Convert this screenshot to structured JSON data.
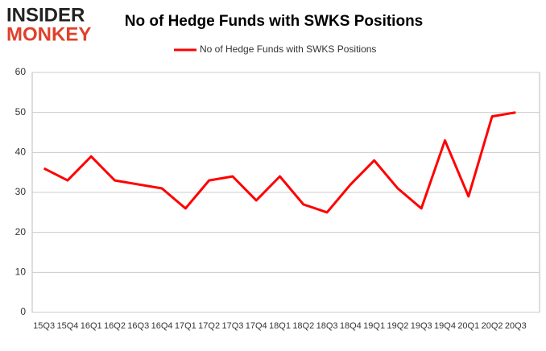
{
  "logo": {
    "line1": "INSIDER",
    "line2": "MONKEY"
  },
  "chart_data": {
    "type": "line",
    "title": "No of Hedge Funds with SWKS Positions",
    "categories": [
      "15Q3",
      "15Q4",
      "16Q1",
      "16Q2",
      "16Q3",
      "16Q4",
      "17Q1",
      "17Q2",
      "17Q3",
      "17Q4",
      "18Q1",
      "18Q2",
      "18Q3",
      "18Q4",
      "19Q1",
      "19Q2",
      "19Q3",
      "19Q4",
      "20Q1",
      "20Q2",
      "20Q3"
    ],
    "series": [
      {
        "name": "No of Hedge Funds with SWKS Positions",
        "color": "#ff0000",
        "values": [
          36,
          33,
          39,
          33,
          32,
          31,
          26,
          33,
          34,
          28,
          34,
          27,
          25,
          32,
          38,
          31,
          26,
          43,
          29,
          49,
          50
        ]
      }
    ],
    "ylim": [
      0,
      60
    ],
    "yticks": [
      0,
      10,
      20,
      30,
      40,
      50,
      60
    ],
    "grid": true,
    "legend": "top"
  }
}
